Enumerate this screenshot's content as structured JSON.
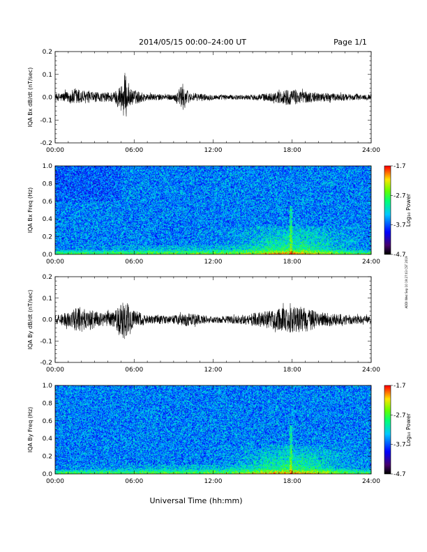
{
  "header": {
    "title": "2014/05/15  00:00–24:00 UT",
    "page": "Page 1/1"
  },
  "xlabel": "Universal Time (hh:mm)",
  "stamp": "ADDI Wed Sep 10 19:27:03 CST 2019",
  "chart_data": [
    {
      "type": "line",
      "ylabel": "IQA Bx dB/dt (nT/sec)",
      "ylim": [
        -0.2,
        0.2
      ],
      "yticks": [
        "0.2",
        "0.1",
        "0.0",
        "-0.1",
        "-0.2"
      ],
      "ytick_values": [
        0.2,
        0.1,
        0.0,
        -0.1,
        -0.2
      ],
      "xlim": [
        0,
        24
      ],
      "xticks": [
        "00:00",
        "06:00",
        "12:00",
        "18:00",
        "24:00"
      ],
      "xtick_values": [
        0,
        6,
        12,
        18,
        24
      ],
      "series": [
        {
          "envelope": [
            {
              "x": 0,
              "amp": 0.015
            },
            {
              "x": 1,
              "amp": 0.025
            },
            {
              "x": 1.6,
              "amp": 0.04
            },
            {
              "x": 2.5,
              "amp": 0.025
            },
            {
              "x": 3.5,
              "amp": 0.02
            },
            {
              "x": 4.5,
              "amp": 0.025
            },
            {
              "x": 5.0,
              "amp": 0.06
            },
            {
              "x": 5.3,
              "amp": 0.11
            },
            {
              "x": 5.6,
              "amp": 0.04
            },
            {
              "x": 7,
              "amp": 0.015
            },
            {
              "x": 9,
              "amp": 0.012
            },
            {
              "x": 9.7,
              "amp": 0.06
            },
            {
              "x": 10.2,
              "amp": 0.02
            },
            {
              "x": 12,
              "amp": 0.012
            },
            {
              "x": 14,
              "amp": 0.01
            },
            {
              "x": 15,
              "amp": 0.012
            },
            {
              "x": 16.5,
              "amp": 0.02
            },
            {
              "x": 17.5,
              "amp": 0.035
            },
            {
              "x": 18.5,
              "amp": 0.03
            },
            {
              "x": 20,
              "amp": 0.02
            },
            {
              "x": 22,
              "amp": 0.015
            },
            {
              "x": 24,
              "amp": 0.012
            }
          ]
        }
      ]
    },
    {
      "type": "heatmap",
      "ylabel": "IQA Bx Freq (Hz)",
      "ylim": [
        0.0,
        1.0
      ],
      "yticks": [
        "1.0",
        "0.8",
        "0.6",
        "0.4",
        "0.2",
        "0.0"
      ],
      "ytick_values": [
        1.0,
        0.8,
        0.6,
        0.4,
        0.2,
        0.0
      ],
      "xlim": [
        0,
        24
      ],
      "xticks": [
        "00:00",
        "06:00",
        "12:00",
        "18:00",
        "24:00"
      ],
      "xtick_values": [
        0,
        6,
        12,
        18,
        24
      ],
      "colorbar": {
        "label": "Log₁₀ Power",
        "range": [
          -4.7,
          -1.7
        ],
        "ticks": [
          "-1.7",
          "-2.7",
          "-3.7",
          "-4.7"
        ],
        "tick_values": [
          -1.7,
          -2.7,
          -3.7,
          -4.7
        ]
      }
    },
    {
      "type": "line",
      "ylabel": "IQA By dB/dt (nT/sec)",
      "ylim": [
        -0.2,
        0.2
      ],
      "yticks": [
        "0.2",
        "0.1",
        "0.0",
        "-0.1",
        "-0.2"
      ],
      "ytick_values": [
        0.2,
        0.1,
        0.0,
        -0.1,
        -0.2
      ],
      "xlim": [
        0,
        24
      ],
      "xticks": [
        "00:00",
        "06:00",
        "12:00",
        "18:00",
        "24:00"
      ],
      "xtick_values": [
        0,
        6,
        12,
        18,
        24
      ],
      "series": [
        {
          "envelope": [
            {
              "x": 0,
              "amp": 0.02
            },
            {
              "x": 1,
              "amp": 0.035
            },
            {
              "x": 1.8,
              "amp": 0.06
            },
            {
              "x": 2.6,
              "amp": 0.05
            },
            {
              "x": 3.5,
              "amp": 0.03
            },
            {
              "x": 4.5,
              "amp": 0.04
            },
            {
              "x": 5.0,
              "amp": 0.07
            },
            {
              "x": 5.3,
              "amp": 0.11
            },
            {
              "x": 5.7,
              "amp": 0.05
            },
            {
              "x": 7,
              "amp": 0.02
            },
            {
              "x": 9,
              "amp": 0.02
            },
            {
              "x": 10,
              "amp": 0.03
            },
            {
              "x": 12,
              "amp": 0.015
            },
            {
              "x": 14,
              "amp": 0.02
            },
            {
              "x": 16,
              "amp": 0.04
            },
            {
              "x": 17,
              "amp": 0.05
            },
            {
              "x": 18,
              "amp": 0.065
            },
            {
              "x": 19,
              "amp": 0.06
            },
            {
              "x": 20,
              "amp": 0.035
            },
            {
              "x": 22,
              "amp": 0.025
            },
            {
              "x": 24,
              "amp": 0.015
            }
          ]
        }
      ]
    },
    {
      "type": "heatmap",
      "ylabel": "IQA By Freq (Hz)",
      "ylim": [
        0.0,
        1.0
      ],
      "yticks": [
        "1.0",
        "0.8",
        "0.6",
        "0.4",
        "0.2",
        "0.0"
      ],
      "ytick_values": [
        1.0,
        0.8,
        0.6,
        0.4,
        0.2,
        0.0
      ],
      "xlim": [
        0,
        24
      ],
      "xticks": [
        "00:00",
        "06:00",
        "12:00",
        "18:00",
        "24:00"
      ],
      "xtick_values": [
        0,
        6,
        12,
        18,
        24
      ],
      "colorbar": {
        "label": "Log₁₀ Power",
        "range": [
          -4.7,
          -1.7
        ],
        "ticks": [
          "-1.7",
          "-2.7",
          "-3.7",
          "-4.7"
        ],
        "tick_values": [
          -1.7,
          -2.7,
          -3.7,
          -4.7
        ]
      }
    }
  ]
}
